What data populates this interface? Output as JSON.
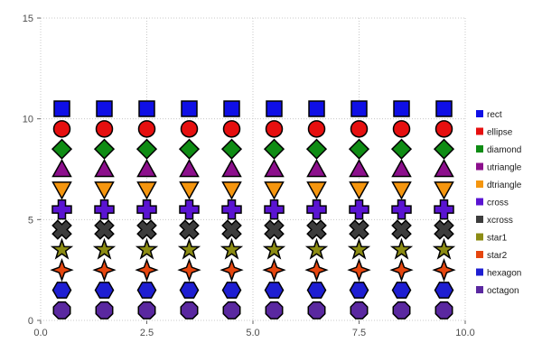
{
  "chart_data": {
    "type": "scatter",
    "title": "",
    "xlabel": "",
    "ylabel": "",
    "x": [
      0.5,
      1.5,
      2.5,
      3.5,
      4.5,
      5.5,
      6.5,
      7.5,
      8.5,
      9.5
    ],
    "series": [
      {
        "name": "rect",
        "marker": "rect",
        "color": "#0f0fe6",
        "y": 10.5
      },
      {
        "name": "ellipse",
        "marker": "ellipse",
        "color": "#e60f0f",
        "y": 9.5
      },
      {
        "name": "diamond",
        "marker": "diamond",
        "color": "#0f8c14",
        "y": 8.5
      },
      {
        "name": "utriangle",
        "marker": "utriangle",
        "color": "#8c0f8c",
        "y": 7.5
      },
      {
        "name": "dtriangle",
        "marker": "dtriangle",
        "color": "#f5960f",
        "y": 6.5
      },
      {
        "name": "cross",
        "marker": "cross",
        "color": "#5a14d2",
        "y": 5.5
      },
      {
        "name": "xcross",
        "marker": "xcross",
        "color": "#3c3c3c",
        "y": 4.5
      },
      {
        "name": "star1",
        "marker": "star1",
        "color": "#8c8c14",
        "y": 3.5
      },
      {
        "name": "star2",
        "marker": "star2",
        "color": "#e6460f",
        "y": 2.5
      },
      {
        "name": "hexagon",
        "marker": "hexagon",
        "color": "#1e1ed2",
        "y": 1.5
      },
      {
        "name": "octagon",
        "marker": "octagon",
        "color": "#5a28a0",
        "y": 0.5
      }
    ],
    "xlim": [
      0,
      10
    ],
    "ylim": [
      0,
      15
    ],
    "xticks": [
      0,
      2.5,
      5,
      7.5,
      10
    ],
    "xtick_labels": [
      "0.0",
      "2.5",
      "5.0",
      "7.5",
      "10.0"
    ],
    "yticks": [
      0,
      5,
      10,
      15
    ],
    "ytick_labels": [
      "0",
      "5",
      "10",
      "15"
    ],
    "grid": true,
    "grid_style": "dotted",
    "legend_position": "right",
    "marker_outline": "#000000",
    "grid_color": "#c8c8c8",
    "tick_color": "#666666",
    "tick_label_color": "#4d4d4d",
    "legend_text_color": "#1a1a1a"
  }
}
